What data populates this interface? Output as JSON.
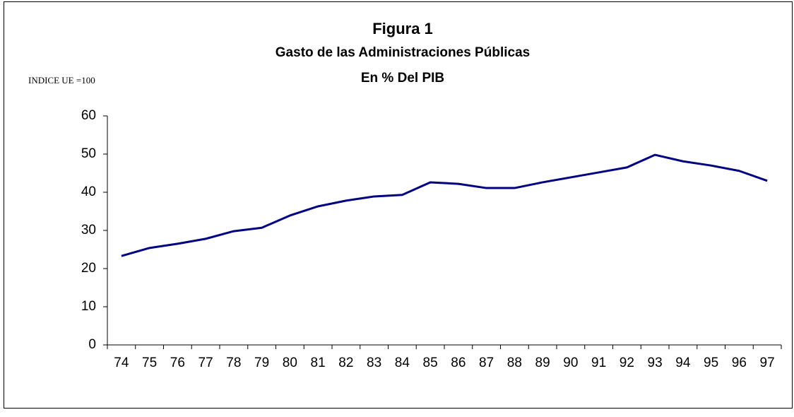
{
  "chart_data": {
    "type": "line",
    "title": "Figura 1",
    "subtitle": [
      "Gasto de las Administraciones Públicas",
      "En % Del PIB"
    ],
    "y_label": "INDICE UE =100",
    "categories": [
      "74",
      "75",
      "76",
      "77",
      "78",
      "79",
      "80",
      "81",
      "82",
      "83",
      "84",
      "85",
      "86",
      "87",
      "88",
      "89",
      "90",
      "91",
      "92",
      "93",
      "94",
      "95",
      "96",
      "97"
    ],
    "values": [
      23.3,
      25.4,
      26.5,
      27.8,
      29.8,
      30.7,
      33.9,
      36.3,
      37.8,
      38.9,
      39.3,
      42.6,
      42.2,
      41.1,
      41.1,
      42.6,
      43.9,
      45.2,
      46.5,
      49.8,
      48.1,
      47.0,
      45.6,
      43.0
    ],
    "color": "#000080",
    "ylim": [
      0,
      60
    ],
    "yticks": [
      0,
      10,
      20,
      30,
      40,
      50,
      60
    ],
    "grid": false
  }
}
